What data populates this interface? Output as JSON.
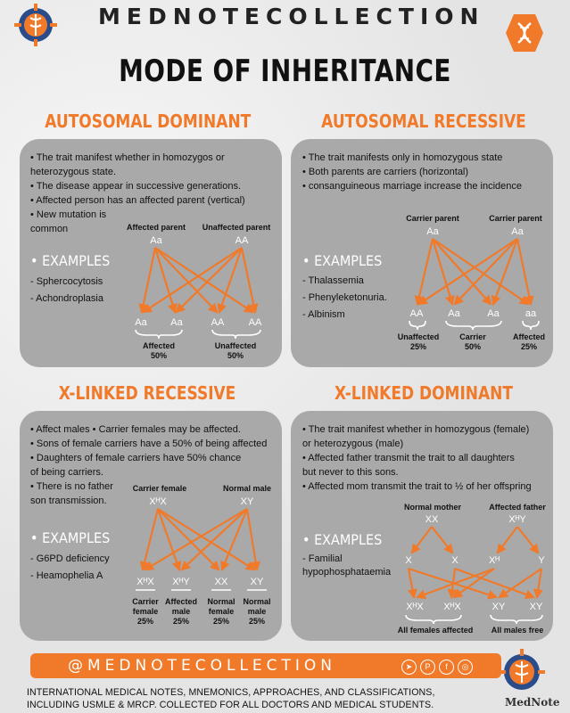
{
  "brand": {
    "title": "MEDNOTECOLLECTION",
    "accent": "#f07a2a",
    "logo_left": "caduceus-emblem-icon",
    "logo_right": "dna-icon"
  },
  "title": "MODE OF INHERITANCE",
  "ad": {
    "title": "AUTOSOMAL DOMINANT",
    "bullets": [
      "• The trait manifest whether in homozygos or",
      "heterozygous state.",
      "• The disease appear in successive generations.",
      "• Affected person has an affected parent (vertical)",
      "• New mutation is",
      "common"
    ],
    "examples_label": "• EXAMPLES",
    "examples": [
      "- Sphercocytosis",
      "- Achondroplasia"
    ],
    "parent1_label": "Affected parent",
    "parent1": "Aa",
    "parent2_label": "Unaffected parent",
    "parent2": "AA",
    "children": [
      "Aa",
      "Aa",
      "AA",
      "AA"
    ],
    "group1": "Affected",
    "group1_pct": "50%",
    "group2": "Unaffected",
    "group2_pct": "50%"
  },
  "ar": {
    "title": "AUTOSOMAL RECESSIVE",
    "bullets": [
      "• The trait manifests only in homozygous state",
      "• Both parents are carriers (horizontal)",
      "• consanguineous marriage increase the incidence"
    ],
    "examples_label": "• EXAMPLES",
    "examples": [
      "- Thalassemia",
      "- Phenyleketonuria.",
      "- Albinism"
    ],
    "parent1_label": "Carrier parent",
    "parent1": "Aa",
    "parent2_label": "Carrier parent",
    "parent2": "Aa",
    "children": [
      "AA",
      "Aa",
      "Aa",
      "aa"
    ],
    "group1": "Unaffected",
    "group1_pct": "25%",
    "group2": "Carrier",
    "group2_pct": "50%",
    "group3": "Affected",
    "group3_pct": "25%"
  },
  "xr": {
    "title": "X-LINKED RECESSIVE",
    "bullets": [
      "• Affect males  • Carrier females may be affected.",
      "• Sons of female carriers have a 50% of being affected",
      "• Daughters of female carriers have 50% chance",
      "of being carriers.",
      "• There is no father",
      "son transmission."
    ],
    "examples_label": "• EXAMPLES",
    "examples": [
      "- G6PD deficiency",
      "- Heamophelia A"
    ],
    "parent1_label": "Carrier female",
    "parent1": "XᴴX",
    "parent2_label": "Normal male",
    "parent2": "XY",
    "children": [
      "XᴴX",
      "XᴴY",
      "XX",
      "XY"
    ],
    "child_labels": [
      [
        "Carrier",
        "female",
        "25%"
      ],
      [
        "Affected",
        "male",
        "25%"
      ],
      [
        "Normal",
        "female",
        "25%"
      ],
      [
        "Normal",
        "male",
        "25%"
      ]
    ]
  },
  "xd": {
    "title": "X-LINKED DOMINANT",
    "bullets": [
      "• The trait manifest whether in homozygous (female)",
      "or heterozygous (male)",
      "• Affected father transmit the trait to all daughters",
      "but never to this sons.",
      "• Affected mom transmit the trait to ½ of her offspring"
    ],
    "examples_label": "• EXAMPLES",
    "examples": [
      "- Familial",
      "hypophosphataemia"
    ],
    "parent1_label": "Normal mother",
    "parent1": "XX",
    "parent2_label": "Affected father",
    "parent2": "XᴴY",
    "gametes": [
      "X",
      "X",
      "Xᴴ",
      "Y"
    ],
    "children": [
      "XᴴX",
      "XᴴX",
      "XY",
      "XY"
    ],
    "group1": "All females affected",
    "group2": "All males free"
  },
  "footer": {
    "handle": "@MEDNOTECOLLECTION",
    "social": [
      "telegram-icon",
      "pinterest-icon",
      "facebook-icon",
      "instagram-icon"
    ],
    "line1": "INTERNATIONAL MEDICAL NOTES, MNEMONICS, APPROACHES, AND CLASSIFICATIONS,",
    "line2": "INCLUDING USMLE & MRCP.  COLLECTED  FOR  ALL DOCTORS AND MEDICAL STUDENTS.",
    "logo_label": "MedNote"
  }
}
